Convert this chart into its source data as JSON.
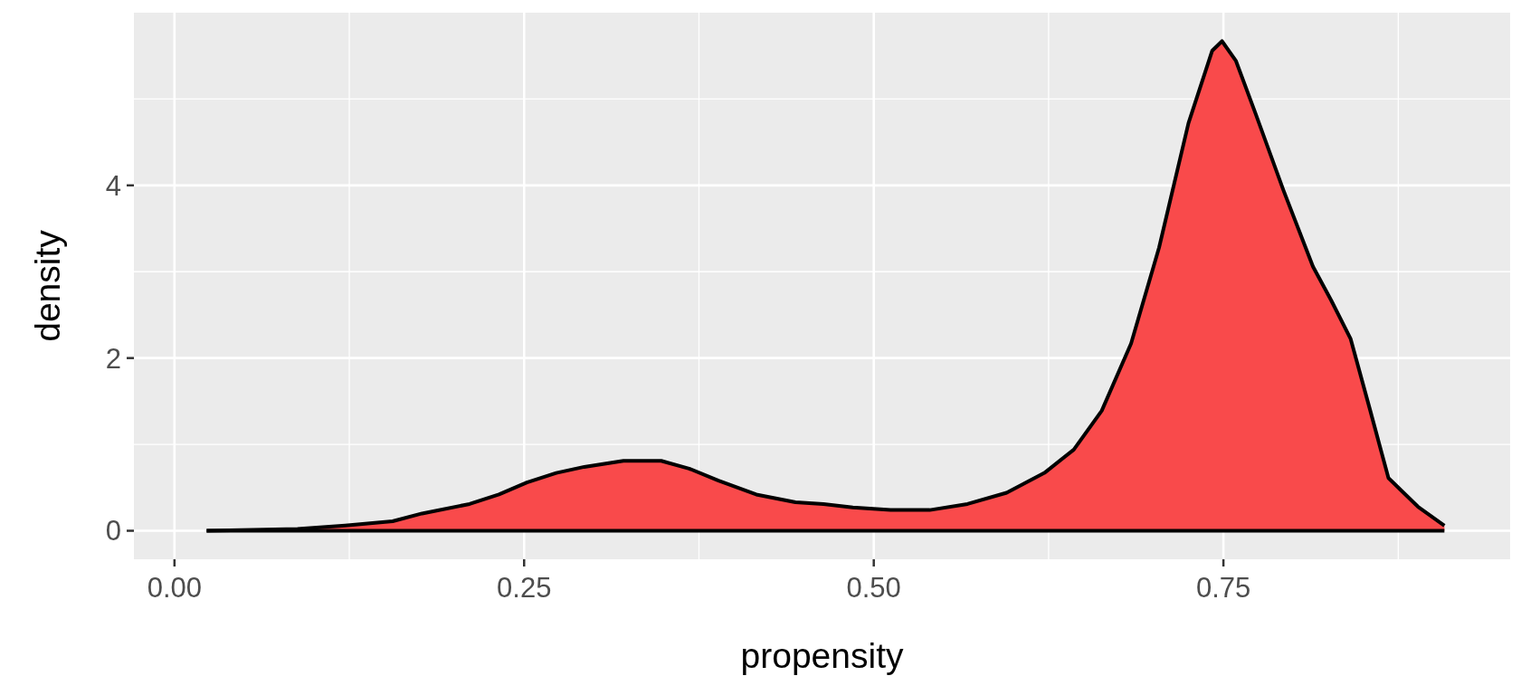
{
  "chart_data": {
    "type": "area",
    "xlabel": "propensity",
    "ylabel": "density",
    "xlim": [
      -0.029,
      0.955
    ],
    "ylim": [
      -0.33,
      6.0
    ],
    "xticks": [
      {
        "value": 0,
        "label": "0.00"
      },
      0.25,
      {
        "value": 0.5,
        "label": "0.50"
      },
      0.75
    ],
    "yticks": [
      0,
      2,
      4
    ],
    "grid": true,
    "x": [
      0.023,
      0.088,
      0.122,
      0.156,
      0.177,
      0.211,
      0.232,
      0.252,
      0.273,
      0.293,
      0.321,
      0.348,
      0.368,
      0.389,
      0.416,
      0.444,
      0.464,
      0.485,
      0.512,
      0.54,
      0.567,
      0.595,
      0.622,
      0.643,
      0.663,
      0.684,
      0.704,
      0.725,
      0.742,
      0.749,
      0.759,
      0.773,
      0.793,
      0.814,
      0.827,
      0.841,
      0.855,
      0.868,
      0.889,
      0.908
    ],
    "series": [
      {
        "color": "#f94a4b",
        "values": [
          0,
          0.02,
          0.06,
          0.11,
          0.2,
          0.31,
          0.42,
          0.56,
          0.67,
          0.74,
          0.81,
          0.81,
          0.72,
          0.58,
          0.42,
          0.33,
          0.31,
          0.27,
          0.24,
          0.24,
          0.31,
          0.44,
          0.67,
          0.94,
          1.39,
          2.17,
          3.28,
          4.72,
          5.56,
          5.67,
          5.44,
          4.83,
          3.94,
          3.06,
          2.67,
          2.22,
          1.39,
          0.61,
          0.28,
          0.06
        ]
      }
    ]
  }
}
